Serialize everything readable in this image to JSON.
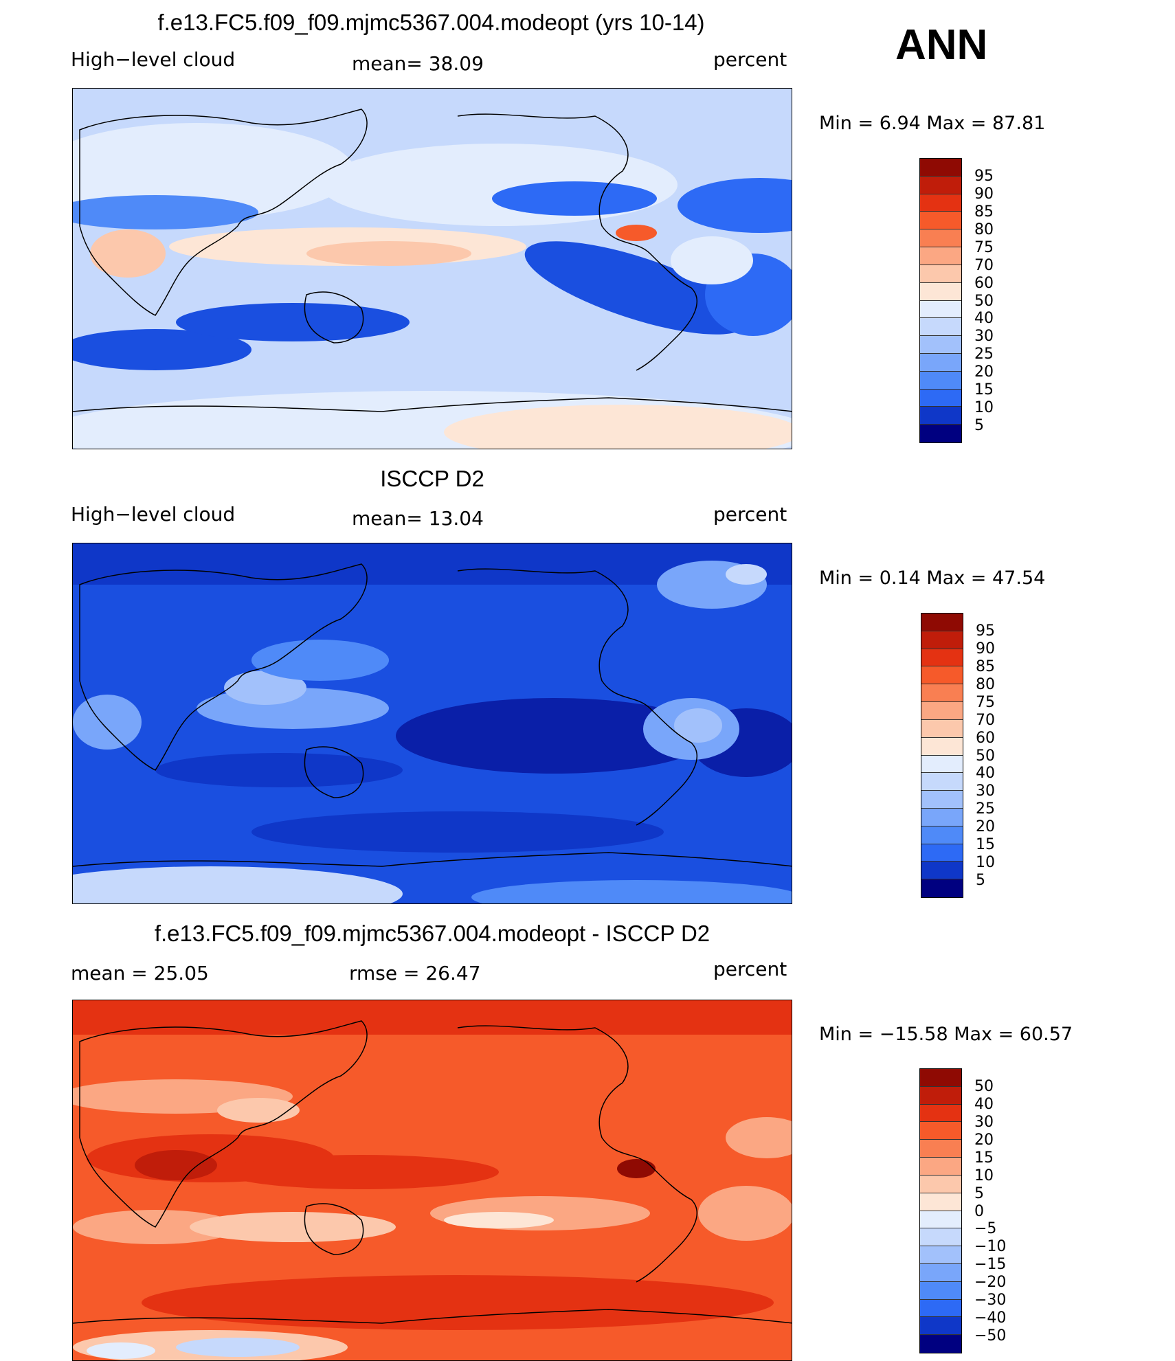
{
  "figure": {
    "season": "ANN"
  },
  "colors": {
    "scale_main": [
      "#000080",
      "#0a1fa8",
      "#0f37c8",
      "#1a4fe0",
      "#2d6af5",
      "#4f8af8",
      "#79a6fa",
      "#a2c1fb",
      "#c6d9fc",
      "#e3edfd",
      "#fde6d6",
      "#fcc8ac",
      "#fba783",
      "#f97f52",
      "#f65a2a",
      "#e43212",
      "#c01d0a",
      "#8f0a03"
    ],
    "scale_diff": [
      "#000080",
      "#0a1fa8",
      "#0f37c8",
      "#1a4fe0",
      "#2d6af5",
      "#4f8af8",
      "#79a6fa",
      "#a2c1fb",
      "#c6d9fc",
      "#e3edfd",
      "#fde6d6",
      "#fcc8ac",
      "#fba783",
      "#f97f52",
      "#f65a2a",
      "#e43212",
      "#c01d0a",
      "#8f0a03"
    ]
  },
  "panels": [
    {
      "title": "f.e13.FC5.f09_f09.mjmc5367.004.modeopt (yrs 10-14)",
      "left_label": "High−level cloud",
      "center_label": "mean=   38.09",
      "right_label": "percent",
      "minmax": "Min =    6.94  Max =   87.81",
      "colorbar_labels": [
        "95",
        "90",
        "85",
        "80",
        "75",
        "70",
        "60",
        "50",
        "40",
        "30",
        "25",
        "20",
        "15",
        "10",
        "5"
      ],
      "base_color": "#c6d9fc"
    },
    {
      "title": "ISCCP D2",
      "left_label": "High−level cloud",
      "center_label": "mean=   13.04",
      "right_label": "percent",
      "minmax": "Min =    0.14  Max =   47.54",
      "colorbar_labels": [
        "95",
        "90",
        "85",
        "80",
        "75",
        "70",
        "60",
        "50",
        "40",
        "30",
        "25",
        "20",
        "15",
        "10",
        "5"
      ],
      "base_color": "#1a4fe0"
    },
    {
      "title": "f.e13.FC5.f09_f09.mjmc5367.004.modeopt - ISCCP D2",
      "left_label": "mean =    25.05",
      "center_label": "rmse =    26.47",
      "right_label": "percent",
      "minmax": "Min = −15.58  Max =   60.57",
      "colorbar_labels": [
        "50",
        "40",
        "30",
        "20",
        "15",
        "10",
        "5",
        "0",
        "−5",
        "−10",
        "−15",
        "−20",
        "−30",
        "−40",
        "−50"
      ],
      "base_color": "#f65a2a"
    }
  ]
}
